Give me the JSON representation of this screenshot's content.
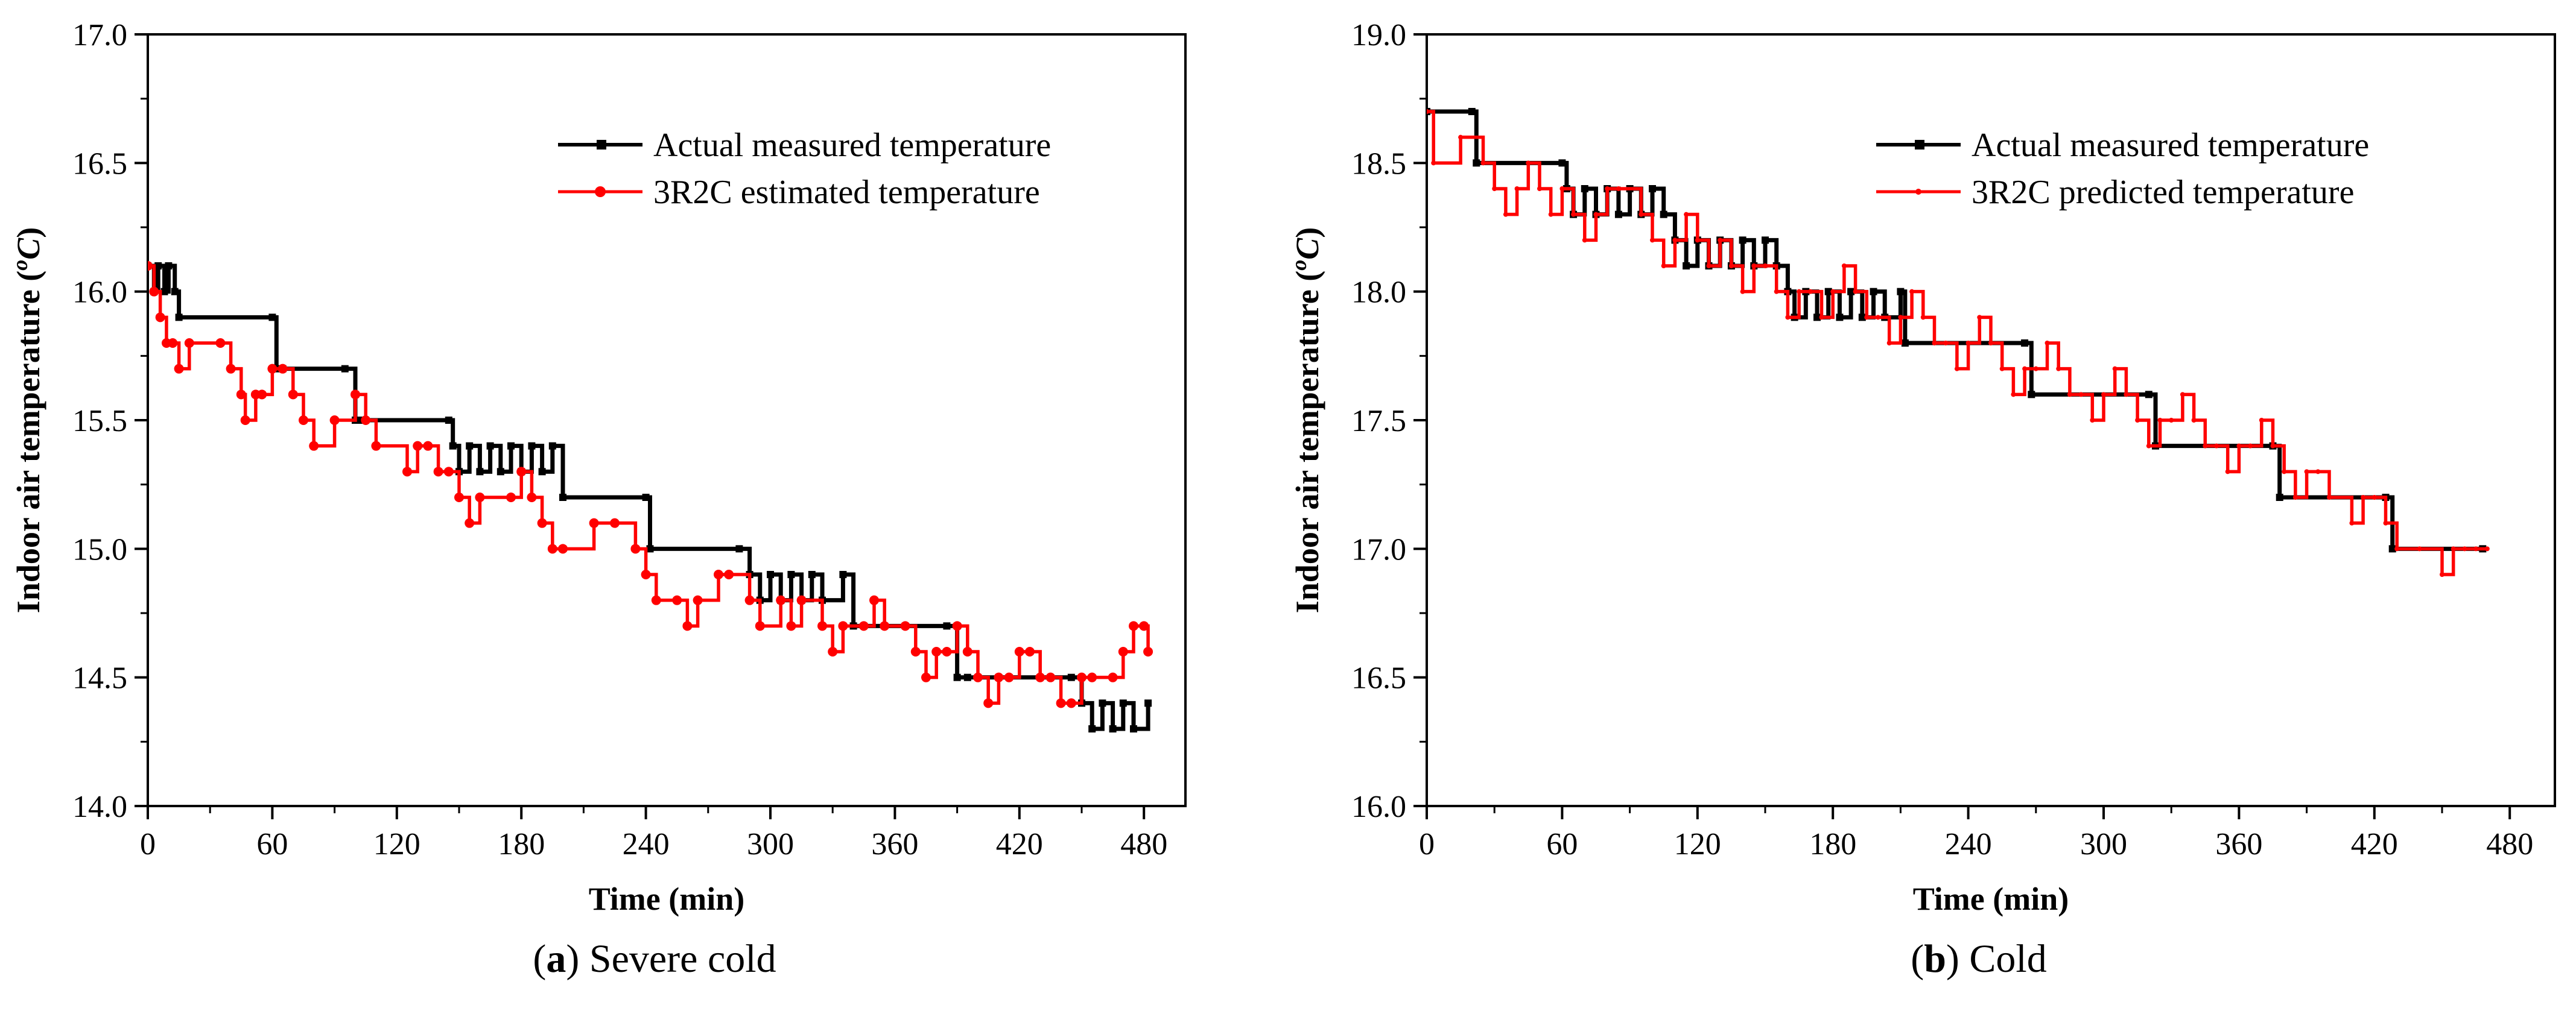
{
  "chart_data": [
    {
      "type": "line",
      "panel": "a",
      "caption_letter": "a",
      "caption_text": " Severe cold",
      "xlabel": "Time (min)",
      "ylabel_main": "Indoor air temperature (",
      "ylabel_sup": "o",
      "ylabel_unit": "C",
      "ylabel_close": ")",
      "xlim": [
        0,
        500
      ],
      "ylim": [
        14.0,
        17.0
      ],
      "xticks": [
        "0",
        "60",
        "120",
        "180",
        "240",
        "300",
        "360",
        "420",
        "480"
      ],
      "yticks": [
        "14.0",
        "14.5",
        "15.0",
        "15.5",
        "16.0",
        "16.5",
        "17.0"
      ],
      "legend_position": "top-right",
      "series": [
        {
          "name": "Actual measured temperature",
          "color": "#000000",
          "marker": "square",
          "x": [
            0,
            3,
            5,
            8,
            10,
            13,
            15,
            60,
            62,
            65,
            95,
            100,
            102,
            145,
            147,
            150,
            155,
            160,
            165,
            170,
            175,
            180,
            185,
            190,
            195,
            200,
            240,
            242,
            285,
            290,
            295,
            300,
            305,
            310,
            315,
            320,
            325,
            335,
            340,
            385,
            390,
            395,
            445,
            450,
            455,
            460,
            465,
            470,
            475,
            482
          ],
          "y": [
            16.1,
            16.0,
            16.1,
            16.0,
            16.1,
            16.0,
            15.9,
            15.9,
            15.7,
            15.7,
            15.7,
            15.5,
            15.5,
            15.5,
            15.4,
            15.3,
            15.4,
            15.3,
            15.4,
            15.3,
            15.4,
            15.3,
            15.4,
            15.3,
            15.4,
            15.2,
            15.2,
            15.0,
            15.0,
            14.9,
            14.8,
            14.9,
            14.8,
            14.9,
            14.8,
            14.9,
            14.8,
            14.9,
            14.7,
            14.7,
            14.5,
            14.5,
            14.5,
            14.4,
            14.3,
            14.4,
            14.3,
            14.4,
            14.3,
            14.4
          ]
        },
        {
          "name": "3R2C estimated temperature",
          "color": "#ff0000",
          "marker": "circle",
          "x": [
            0,
            3,
            6,
            9,
            12,
            15,
            20,
            35,
            40,
            45,
            47,
            52,
            55,
            60,
            65,
            70,
            75,
            80,
            90,
            100,
            105,
            110,
            125,
            130,
            135,
            140,
            145,
            150,
            155,
            160,
            175,
            180,
            185,
            190,
            195,
            200,
            215,
            225,
            235,
            240,
            245,
            255,
            260,
            265,
            275,
            280,
            290,
            295,
            305,
            310,
            315,
            325,
            330,
            335,
            345,
            350,
            355,
            365,
            370,
            375,
            380,
            385,
            390,
            395,
            400,
            405,
            410,
            415,
            420,
            425,
            430,
            435,
            440,
            445,
            450,
            455,
            465,
            470,
            475,
            480,
            482
          ],
          "y": [
            16.1,
            16.0,
            15.9,
            15.8,
            15.8,
            15.7,
            15.8,
            15.8,
            15.7,
            15.6,
            15.5,
            15.6,
            15.6,
            15.7,
            15.7,
            15.6,
            15.5,
            15.4,
            15.5,
            15.6,
            15.5,
            15.4,
            15.3,
            15.4,
            15.4,
            15.3,
            15.3,
            15.2,
            15.1,
            15.2,
            15.2,
            15.3,
            15.2,
            15.1,
            15.0,
            15.0,
            15.1,
            15.1,
            15.0,
            14.9,
            14.8,
            14.8,
            14.7,
            14.8,
            14.9,
            14.9,
            14.8,
            14.7,
            14.8,
            14.7,
            14.8,
            14.7,
            14.6,
            14.7,
            14.7,
            14.8,
            14.7,
            14.7,
            14.6,
            14.5,
            14.6,
            14.6,
            14.7,
            14.6,
            14.5,
            14.4,
            14.5,
            14.5,
            14.6,
            14.6,
            14.5,
            14.5,
            14.4,
            14.4,
            14.5,
            14.5,
            14.5,
            14.6,
            14.7,
            14.7,
            14.6
          ]
        }
      ]
    },
    {
      "type": "line",
      "panel": "b",
      "caption_letter": "b",
      "caption_text": " Cold",
      "xlabel": "Time (min)",
      "ylabel_main": "Indoor air temperature (",
      "ylabel_sup": "o",
      "ylabel_unit": "C",
      "ylabel_close": ")",
      "xlim": [
        0,
        500
      ],
      "ylim": [
        16.0,
        19.0
      ],
      "xticks": [
        "0",
        "60",
        "120",
        "180",
        "240",
        "300",
        "360",
        "420",
        "480"
      ],
      "yticks": [
        "16.0",
        "16.5",
        "17.0",
        "17.5",
        "18.0",
        "18.5",
        "19.0"
      ],
      "legend_position": "top-right",
      "series": [
        {
          "name": "Actual measured temperature",
          "color": "#000000",
          "marker": "square",
          "x": [
            0,
            20,
            22,
            60,
            62,
            65,
            70,
            75,
            80,
            85,
            90,
            95,
            100,
            105,
            110,
            115,
            120,
            125,
            130,
            135,
            140,
            145,
            150,
            155,
            160,
            163,
            168,
            173,
            178,
            183,
            188,
            193,
            198,
            203,
            210,
            212,
            265,
            268,
            320,
            323,
            375,
            378,
            425,
            428,
            468
          ],
          "y": [
            18.7,
            18.7,
            18.5,
            18.5,
            18.4,
            18.3,
            18.4,
            18.3,
            18.4,
            18.3,
            18.4,
            18.3,
            18.4,
            18.3,
            18.2,
            18.1,
            18.2,
            18.1,
            18.2,
            18.1,
            18.2,
            18.1,
            18.2,
            18.1,
            18.0,
            17.9,
            18.0,
            17.9,
            18.0,
            17.9,
            18.0,
            17.9,
            18.0,
            17.9,
            18.0,
            17.8,
            17.8,
            17.6,
            17.6,
            17.4,
            17.4,
            17.2,
            17.2,
            17.0,
            17.0
          ]
        },
        {
          "name": "3R2C predicted temperature",
          "color": "#ff0000",
          "marker": "dot",
          "x": [
            0,
            3,
            15,
            25,
            30,
            35,
            40,
            45,
            50,
            55,
            60,
            65,
            70,
            75,
            80,
            85,
            95,
            100,
            105,
            110,
            115,
            120,
            125,
            130,
            135,
            140,
            145,
            150,
            155,
            160,
            165,
            170,
            175,
            180,
            185,
            190,
            195,
            200,
            205,
            210,
            215,
            220,
            225,
            230,
            235,
            240,
            245,
            250,
            255,
            260,
            265,
            270,
            275,
            280,
            285,
            290,
            295,
            300,
            305,
            310,
            315,
            320,
            325,
            330,
            335,
            340,
            345,
            350,
            355,
            360,
            365,
            370,
            375,
            380,
            385,
            390,
            395,
            400,
            410,
            415,
            420,
            425,
            430,
            440,
            450,
            455,
            460,
            465,
            470
          ],
          "y": [
            18.7,
            18.5,
            18.6,
            18.5,
            18.4,
            18.3,
            18.4,
            18.5,
            18.4,
            18.3,
            18.4,
            18.3,
            18.2,
            18.3,
            18.4,
            18.4,
            18.3,
            18.2,
            18.1,
            18.2,
            18.3,
            18.2,
            18.1,
            18.2,
            18.1,
            18.0,
            18.1,
            18.1,
            18.0,
            17.9,
            18.0,
            18.0,
            17.9,
            18.0,
            18.1,
            18.0,
            17.9,
            17.9,
            17.8,
            17.9,
            18.0,
            17.9,
            17.8,
            17.8,
            17.7,
            17.8,
            17.9,
            17.8,
            17.7,
            17.6,
            17.7,
            17.7,
            17.8,
            17.7,
            17.6,
            17.6,
            17.5,
            17.6,
            17.7,
            17.6,
            17.5,
            17.4,
            17.5,
            17.5,
            17.6,
            17.5,
            17.4,
            17.4,
            17.3,
            17.4,
            17.4,
            17.5,
            17.4,
            17.3,
            17.2,
            17.3,
            17.3,
            17.2,
            17.1,
            17.2,
            17.2,
            17.1,
            17.0,
            17.0,
            16.9,
            17.0,
            17.0,
            17.0,
            17.0
          ]
        }
      ]
    }
  ]
}
